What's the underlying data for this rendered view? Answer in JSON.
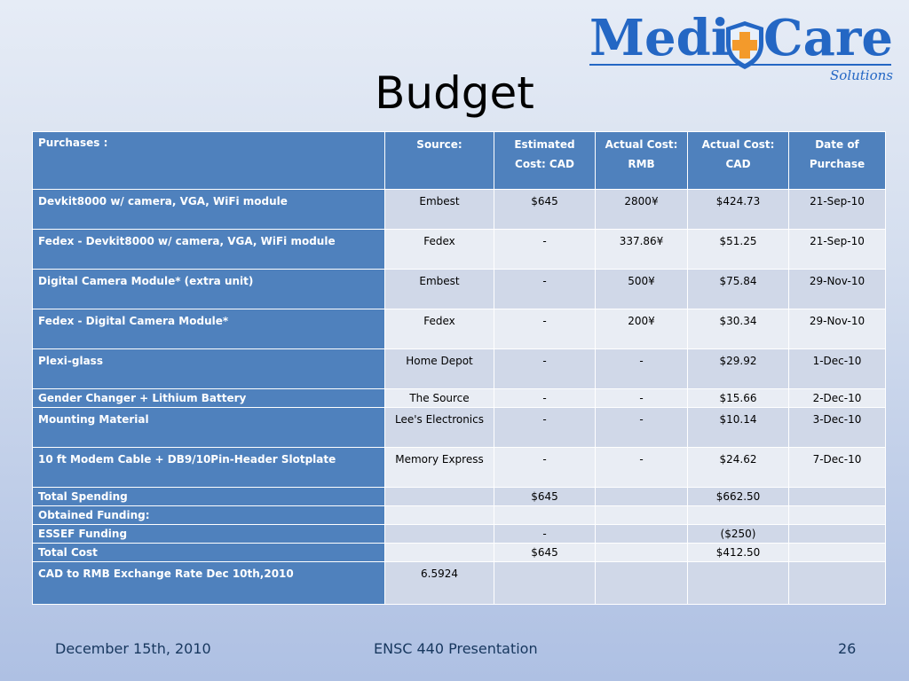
{
  "slide": {
    "title": "Budget",
    "footer_date": "December 15th, 2010",
    "footer_title": "ENSC 440 Presentation",
    "page_number": "26"
  },
  "logo": {
    "word1": "Medi",
    "word2": "Care",
    "subtitle": "Solutions",
    "brand_color": "#2467c4",
    "accent_color": "#f39a2b",
    "icon": "shield-cross-icon"
  },
  "colors": {
    "header_bg": "#4f81bd",
    "row_bg": "#d0d8e8",
    "row_alt_bg": "#e9edf4"
  },
  "table": {
    "headers": [
      "Purchases :",
      "Source:",
      "Estimated Cost: CAD",
      "Actual Cost: RMB",
      "Actual Cost: CAD",
      "Date of Purchase"
    ],
    "rows": [
      {
        "item": "Devkit8000 w/ camera, VGA, WiFi module",
        "source": "Embest",
        "est_cad": "$645",
        "rmb": "2800¥",
        "cad": "$424.73",
        "date": "21-Sep-10"
      },
      {
        "item": "Fedex - Devkit8000 w/ camera, VGA, WiFi module",
        "source": "Fedex",
        "est_cad": "-",
        "rmb": "337.86¥",
        "cad": "$51.25",
        "date": "21-Sep-10"
      },
      {
        "item": "Digital Camera Module* (extra unit)",
        "source": "Embest",
        "est_cad": "-",
        "rmb": "500¥",
        "cad": "$75.84",
        "date": "29-Nov-10"
      },
      {
        "item": "Fedex - Digital Camera Module*",
        "source": "Fedex",
        "est_cad": "-",
        "rmb": "200¥",
        "cad": "$30.34",
        "date": "29-Nov-10"
      },
      {
        "item": "Plexi-glass",
        "source": "Home Depot",
        "est_cad": "-",
        "rmb": "-",
        "cad": "$29.92",
        "date": "1-Dec-10"
      },
      {
        "item": "Gender Changer + Lithium Battery",
        "source": "The Source",
        "est_cad": "-",
        "rmb": "-",
        "cad": "$15.66",
        "date": "2-Dec-10"
      },
      {
        "item": "Mounting Material",
        "source": "Lee's Electronics",
        "est_cad": "-",
        "rmb": "-",
        "cad": "$10.14",
        "date": "3-Dec-10"
      },
      {
        "item": "10 ft Modem Cable + DB9/10Pin-Header Slotplate",
        "source": "Memory Express",
        "est_cad": "-",
        "rmb": "-",
        "cad": "$24.62",
        "date": "7-Dec-10"
      },
      {
        "item": "Total Spending",
        "source": "",
        "est_cad": "$645",
        "rmb": "",
        "cad": "$662.50",
        "date": ""
      },
      {
        "item": "Obtained Funding:",
        "source": "",
        "est_cad": "",
        "rmb": "",
        "cad": "",
        "date": ""
      },
      {
        "item": "ESSEF Funding",
        "source": "",
        "est_cad": "-",
        "rmb": "",
        "cad": "($250)",
        "date": ""
      },
      {
        "item": "Total Cost",
        "source": "",
        "est_cad": "$645",
        "rmb": "",
        "cad": "$412.50",
        "date": ""
      },
      {
        "item": "CAD to RMB Exchange Rate Dec 10th,2010",
        "source": "6.5924",
        "est_cad": "",
        "rmb": "",
        "cad": "",
        "date": ""
      }
    ]
  }
}
